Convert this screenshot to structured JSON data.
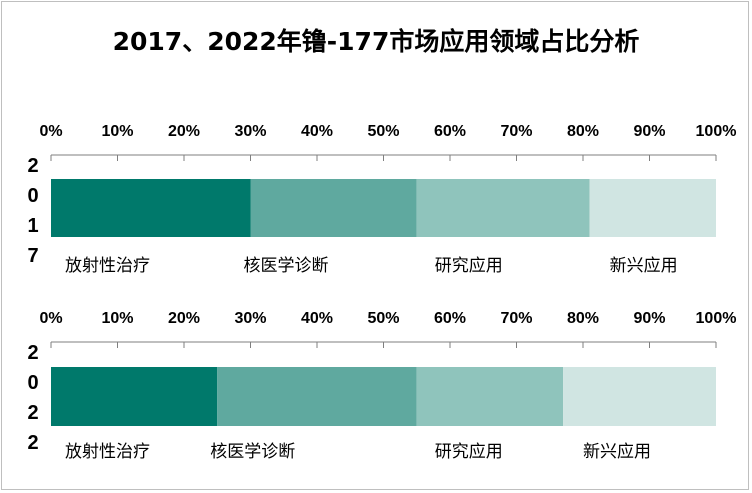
{
  "title": "2017、2022年镥-177市场应用领域占比分析",
  "colors": {
    "放射性治疗": "#00796b",
    "核医学诊断": "#5fa99f",
    "研究应用": "#8fc4bc",
    "新兴应用": "#d0e5e2",
    "axis": "#7f7f7f"
  },
  "chart_data": [
    {
      "type": "bar",
      "orientation": "horizontal-stacked",
      "year_label": "2017",
      "xlim": [
        0,
        100
      ],
      "tick_labels": [
        "0%",
        "10%",
        "20%",
        "30%",
        "40%",
        "50%",
        "60%",
        "70%",
        "80%",
        "90%",
        "100%"
      ],
      "categories": [
        "放射性治疗",
        "核医学诊断",
        "研究应用",
        "新兴应用"
      ],
      "values": [
        30,
        25,
        26,
        19
      ]
    },
    {
      "type": "bar",
      "orientation": "horizontal-stacked",
      "year_label": "2022",
      "xlim": [
        0,
        100
      ],
      "tick_labels": [
        "0%",
        "10%",
        "20%",
        "30%",
        "40%",
        "50%",
        "60%",
        "70%",
        "80%",
        "90%",
        "100%"
      ],
      "categories": [
        "放射性治疗",
        "核医学诊断",
        "研究应用",
        "新兴应用"
      ],
      "values": [
        25,
        30,
        22,
        23
      ]
    }
  ]
}
